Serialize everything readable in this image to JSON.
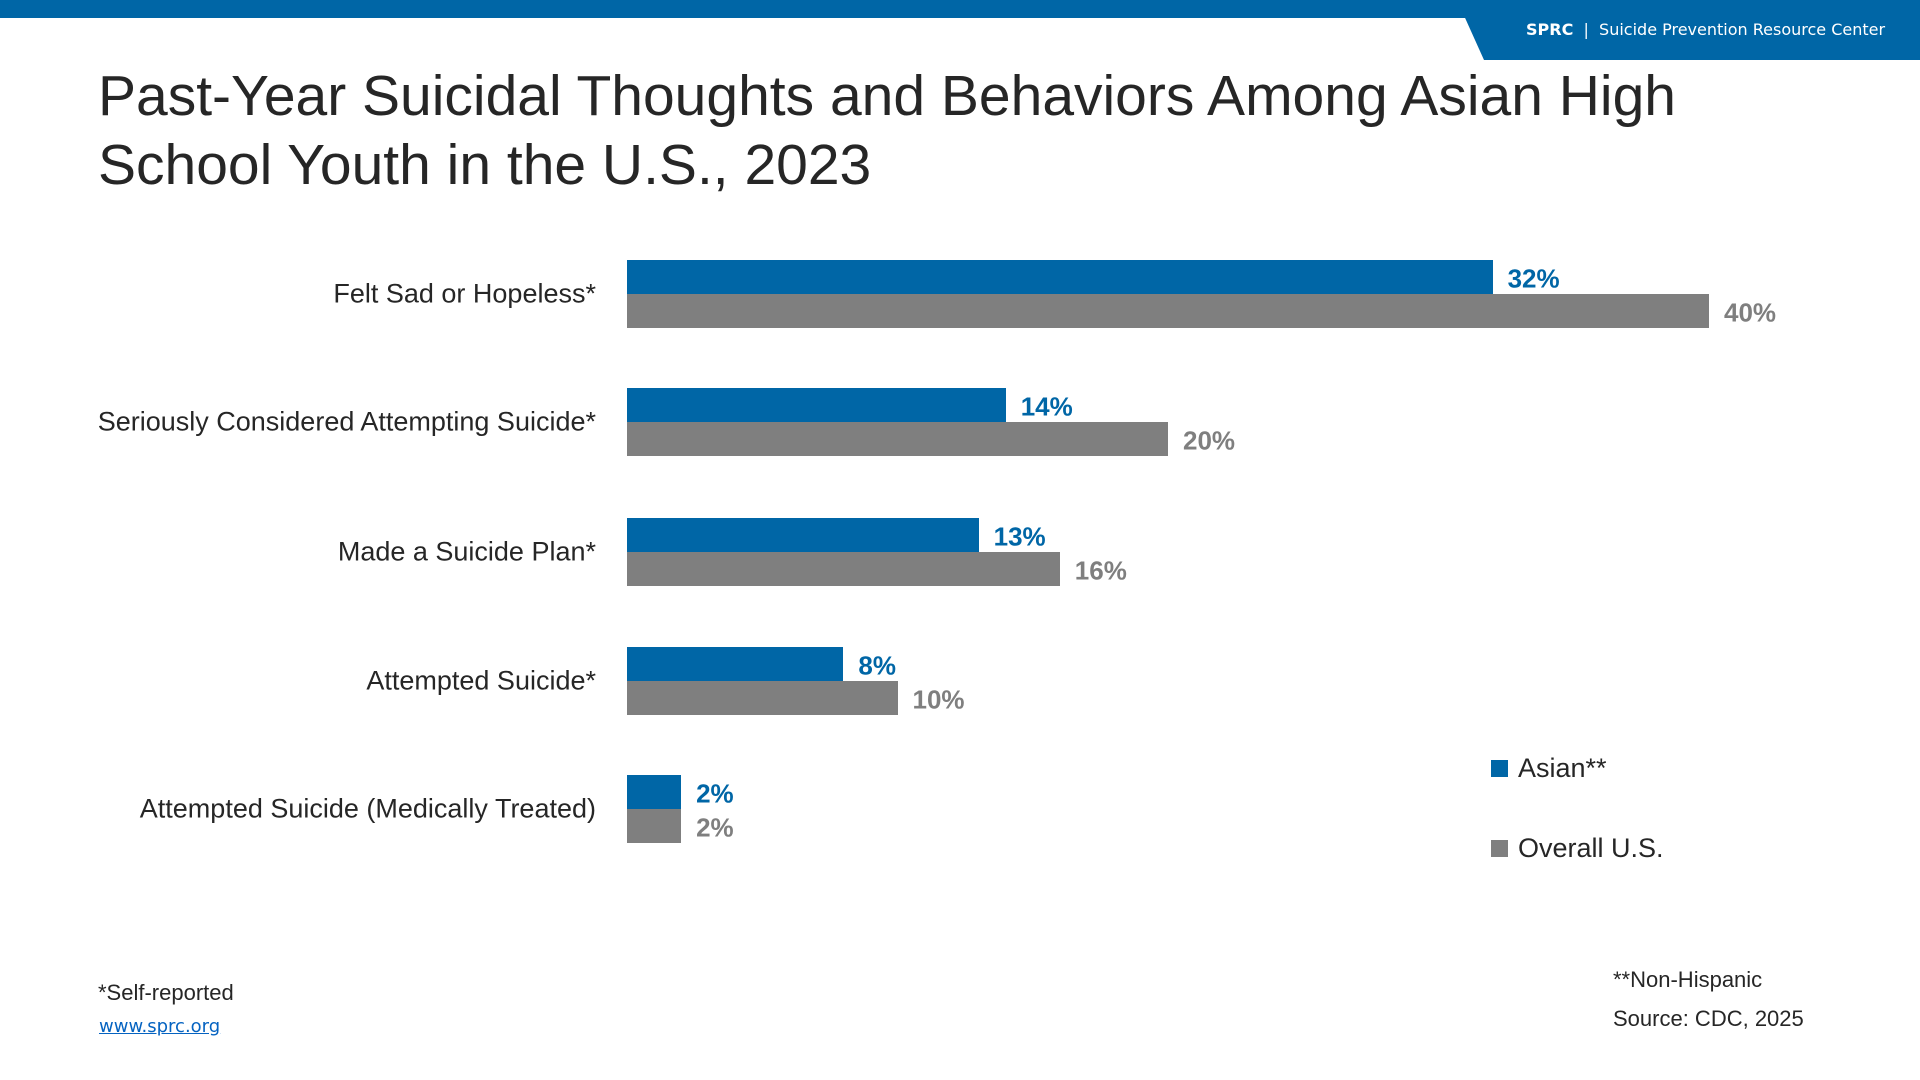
{
  "header": {
    "brand": "SPRC",
    "separator": "|",
    "org_name": "Suicide Prevention Resource Center"
  },
  "colors": {
    "asian": "#0066a6",
    "overall": "#7f7f7f"
  },
  "chart_data": {
    "type": "bar",
    "orientation": "horizontal",
    "title": "Past-Year Suicidal Thoughts and Behaviors Among Asian High School Youth in the U.S., 2023",
    "categories": [
      "Felt Sad or Hopeless*",
      "Seriously Considered Attempting Suicide*",
      "Made a Suicide Plan*",
      "Attempted Suicide*",
      "Attempted Suicide (Medically Treated)"
    ],
    "series": [
      {
        "name": "Asian**",
        "values": [
          32,
          14,
          13,
          8,
          2
        ],
        "labels": [
          "32%",
          "14%",
          "13%",
          "8%",
          "2%"
        ]
      },
      {
        "name": "Overall U.S.",
        "values": [
          40,
          20,
          16,
          10,
          2
        ],
        "labels": [
          "40%",
          "20%",
          "16%",
          "10%",
          "2%"
        ]
      }
    ],
    "xlim": [
      0,
      40
    ],
    "grid": false,
    "legend_position": "bottom-right"
  },
  "footer": {
    "self_reported": "*Self-reported",
    "website": "www.sprc.org",
    "non_hispanic": "**Non-Hispanic",
    "source": "Source: CDC, 2025"
  }
}
